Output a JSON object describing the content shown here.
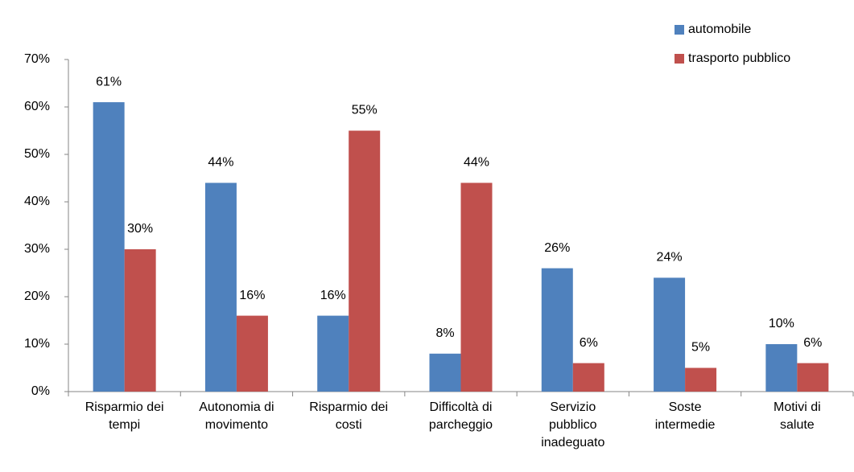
{
  "chart_data": {
    "type": "bar",
    "categories": [
      "Risparmio dei\ntempi",
      "Autonomia di\nmovimento",
      "Risparmio dei\ncosti",
      "Difficoltà di\nparcheggio",
      "Servizio\npubblico\ninadeguato",
      "Soste\nintermedie",
      "Motivi di\nsalute"
    ],
    "series": [
      {
        "name": "automobile",
        "color": "#4f81bd",
        "values": [
          61,
          44,
          16,
          8,
          26,
          24,
          10
        ],
        "value_labels": [
          "61%",
          "44%",
          "16%",
          "8%",
          "26%",
          "24%",
          "10%"
        ]
      },
      {
        "name": "trasporto pubblico",
        "color": "#c0504d",
        "values": [
          30,
          16,
          55,
          44,
          6,
          5,
          6
        ],
        "value_labels": [
          "30%",
          "16%",
          "55%",
          "44%",
          "6%",
          "5%",
          "6%"
        ]
      }
    ],
    "ylim": [
      0,
      70
    ],
    "yticks": [
      {
        "value": 0,
        "label": "0%"
      },
      {
        "value": 10,
        "label": "10%"
      },
      {
        "value": 20,
        "label": "20%"
      },
      {
        "value": 30,
        "label": "30%"
      },
      {
        "value": 40,
        "label": "40%"
      },
      {
        "value": 50,
        "label": "50%"
      },
      {
        "value": 60,
        "label": "60%"
      },
      {
        "value": 70,
        "label": "70%"
      }
    ],
    "grid": false,
    "legend": "top-right"
  }
}
